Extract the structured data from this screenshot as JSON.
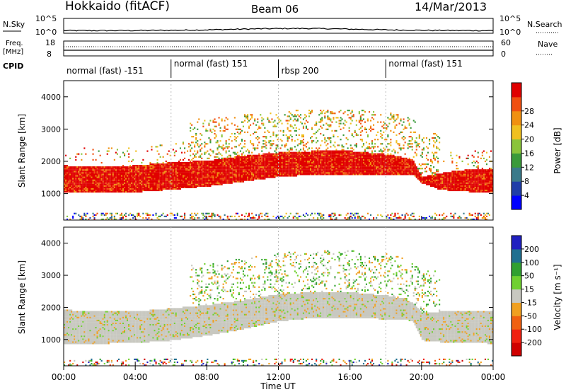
{
  "header": {
    "station": "Hokkaido (fitACF)",
    "beam": "Beam 06",
    "date": "14/Mar/2013"
  },
  "noise_panel": {
    "left_label": "N.Sky",
    "right_label": "N.Search",
    "left_ticks": [
      "10^5",
      "10^0"
    ],
    "right_ticks": [
      "10^5",
      "10^0"
    ]
  },
  "freq_panel": {
    "left_label": "Freq.",
    "left_unit": "[MHz]",
    "right_label": "Nave",
    "left_ticks": [
      "18",
      "8"
    ],
    "right_ticks": [
      "60",
      "0"
    ]
  },
  "cpid": {
    "label": "CPID",
    "segments": [
      {
        "start_h": 0,
        "end_h": 6,
        "text": "normal (fast) -151"
      },
      {
        "start_h": 6,
        "end_h": 12,
        "text": "normal (fast) 151"
      },
      {
        "start_h": 12,
        "end_h": 18,
        "text": "rbsp 200"
      },
      {
        "start_h": 18,
        "end_h": 24,
        "text": "normal (fast) 151"
      }
    ]
  },
  "power_panel": {
    "ylabel": "Slant Range [km]",
    "yticks": [
      "1000",
      "2000",
      "3000",
      "4000"
    ],
    "colorbar_label": "Power [dB]",
    "colorbar_ticks": [
      "4",
      "8",
      "12",
      "16",
      "20",
      "24",
      "28"
    ],
    "colors": [
      "#0000ff",
      "#1f3da8",
      "#3a7a8a",
      "#3a9a3a",
      "#8ac43a",
      "#f0c020",
      "#f09010",
      "#f05010",
      "#e00000"
    ]
  },
  "velocity_panel": {
    "ylabel": "Slant Range [km]",
    "yticks": [
      "1000",
      "2000",
      "3000",
      "4000"
    ],
    "colorbar_label": "Velocity [m s⁻¹]",
    "colorbar_ticks": [
      "200",
      "100",
      "50",
      "15",
      "-15",
      "-50",
      "-100",
      "-200"
    ],
    "colors": [
      "#2020c0",
      "#207090",
      "#30a030",
      "#70d030",
      "#c8c8c0",
      "#f0a020",
      "#f06010",
      "#f02010",
      "#d00000"
    ]
  },
  "x_axis": {
    "label": "Time UT",
    "ticks": [
      "00:00",
      "04:00",
      "08:00",
      "12:00",
      "16:00",
      "20:00",
      "00:00"
    ]
  },
  "chart_data": {
    "type": "heatmap",
    "x_unit": "hours UT",
    "xlim": [
      0,
      24
    ],
    "ylim_km": [
      180,
      4500
    ],
    "power_main_band": {
      "x": [
        0,
        2,
        4,
        6,
        8,
        10,
        12,
        14,
        16,
        17,
        18,
        19,
        19.5,
        20,
        21,
        22,
        24
      ],
      "lower_km": [
        1000,
        1000,
        1020,
        1100,
        1200,
        1350,
        1500,
        1560,
        1560,
        1560,
        1550,
        1550,
        1550,
        1300,
        1100,
        1050,
        1000
      ],
      "upper_km": [
        1850,
        1800,
        1850,
        1950,
        2000,
        2150,
        2250,
        2300,
        2300,
        2250,
        2200,
        2100,
        2000,
        1500,
        1600,
        1700,
        1750
      ],
      "power_db": 28
    },
    "velocity_main_band": {
      "x": [
        0,
        2,
        4,
        6,
        8,
        10,
        12,
        14,
        16,
        17,
        18,
        19,
        19.5,
        20,
        21,
        22,
        24
      ],
      "lower_km": [
        850,
        850,
        870,
        950,
        1100,
        1300,
        1550,
        1650,
        1650,
        1650,
        1600,
        1600,
        1550,
        950,
        900,
        880,
        850
      ],
      "upper_km": [
        1900,
        1850,
        1850,
        1950,
        2050,
        2200,
        2400,
        2450,
        2450,
        2400,
        2350,
        2250,
        2100,
        1800,
        1850,
        1850,
        1850
      ],
      "velocity_m_s": 0
    }
  }
}
